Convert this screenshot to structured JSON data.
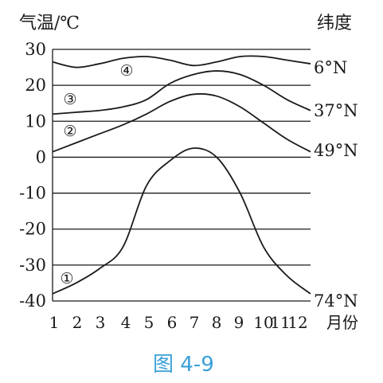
{
  "chart_data": {
    "type": "line",
    "ylabel": "气温/℃",
    "right_label": "纬度",
    "xlabel": "月份",
    "caption": "图 4-9",
    "categories": [
      "1",
      "2",
      "3",
      "4",
      "5",
      "6",
      "7",
      "8",
      "9",
      "10",
      "11",
      "12"
    ],
    "ylim": [
      -40,
      30
    ],
    "yticks": [
      "30",
      "20",
      "10",
      "0",
      "-10",
      "-20",
      "-30",
      "-40"
    ],
    "grid": true,
    "series": [
      {
        "name": "6°N",
        "marker": "④",
        "values": [
          26.5,
          25,
          26,
          27.5,
          28,
          27,
          25.5,
          26.5,
          28,
          28,
          27,
          26
        ]
      },
      {
        "name": "37°N",
        "marker": "③",
        "values": [
          12,
          12.5,
          13,
          14,
          16,
          20.5,
          23,
          24,
          23,
          20,
          16,
          13
        ]
      },
      {
        "name": "49°N",
        "marker": "②",
        "values": [
          1.5,
          4,
          6.5,
          9,
          12,
          15.5,
          17.5,
          17,
          14,
          9.5,
          5,
          1.5
        ]
      },
      {
        "name": "74°N",
        "marker": "①",
        "values": [
          -38,
          -35,
          -31,
          -25,
          -8,
          -1,
          2.5,
          0,
          -10,
          -25,
          -33,
          -38
        ]
      }
    ]
  }
}
